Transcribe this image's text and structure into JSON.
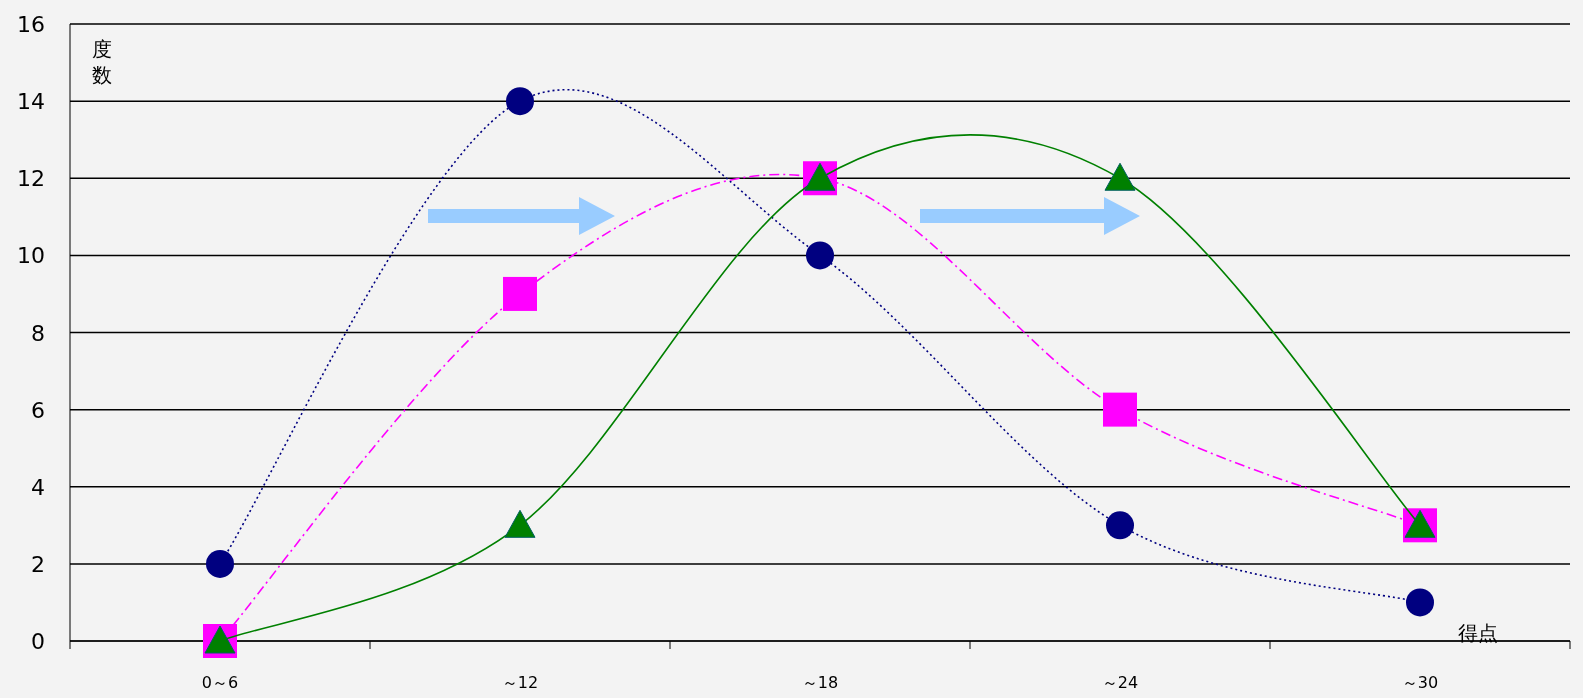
{
  "chart_data": {
    "type": "line",
    "ylabel": "度数",
    "xlabel": "得点",
    "categories": [
      "0～6",
      "～12",
      "～18",
      "～24",
      "～30"
    ],
    "ylim": [
      0,
      16
    ],
    "yticks": [
      0,
      2,
      4,
      6,
      8,
      10,
      12,
      14,
      16
    ],
    "grid": "y",
    "series": [
      {
        "color": "#000080",
        "values": [
          2,
          14,
          10,
          3,
          1
        ],
        "marker": "circle",
        "line_style": "dotted"
      },
      {
        "color": "#ff00ff",
        "values": [
          0,
          9,
          12,
          6,
          3
        ],
        "marker": "square",
        "line_style": "dashdot"
      },
      {
        "color": "#008000",
        "values": [
          0,
          3,
          12,
          12,
          3
        ],
        "marker": "triangle",
        "line_style": "solid"
      }
    ]
  }
}
